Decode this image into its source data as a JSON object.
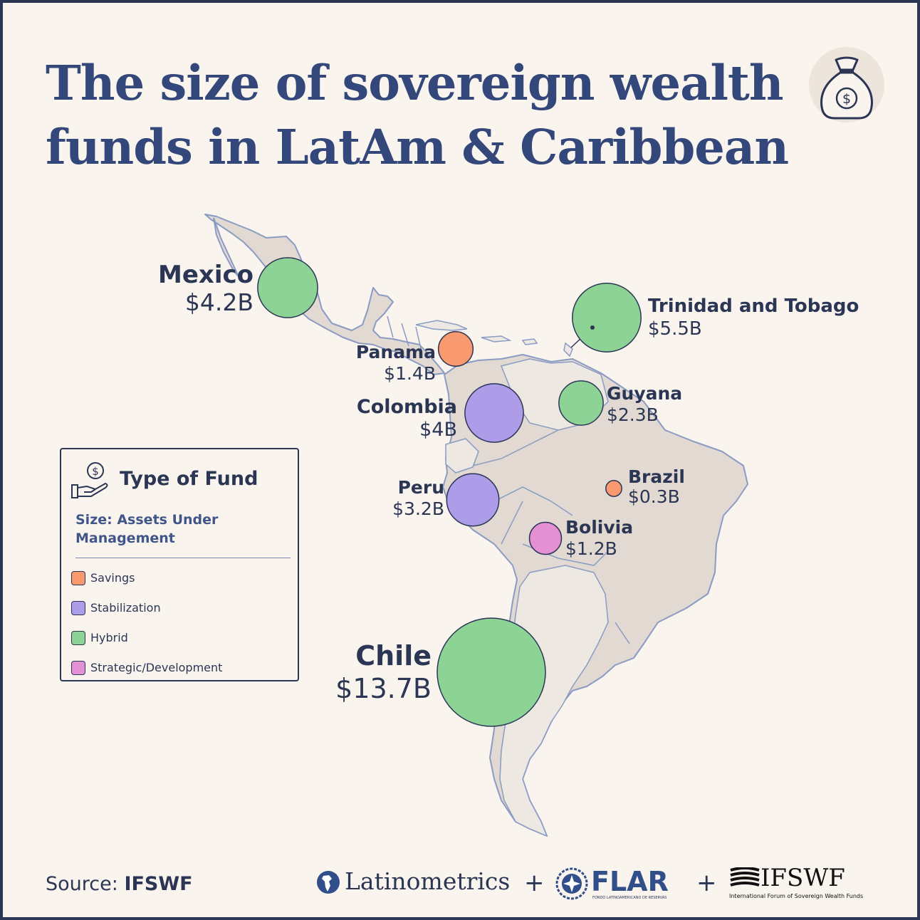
{
  "title": {
    "line1": "The size of sovereign wealth",
    "line2": "funds in LatAm & Caribbean"
  },
  "icons": {
    "header": "money-bag-icon",
    "legend": "hand-holding-coin-icon"
  },
  "colors": {
    "savings": "#f99970",
    "stabilization": "#ad9de8",
    "hybrid": "#8dd396",
    "strategic": "#e390d4",
    "land": "#e1d9d2",
    "land_light": "#ede8e2",
    "border": "#8a9bc4",
    "ink": "#2b3655",
    "title": "#34477a"
  },
  "legend": {
    "title": "Type of Fund",
    "subtitle": "Size: Assets Under Management",
    "items": [
      {
        "key": "savings",
        "label": "Savings"
      },
      {
        "key": "stabilization",
        "label": "Stabilization"
      },
      {
        "key": "hybrid",
        "label": "Hybrid"
      },
      {
        "key": "strategic",
        "label": "Strategic/Development"
      }
    ]
  },
  "funds": [
    {
      "country": "Mexico",
      "value": "$4.2B",
      "assets_bn": 4.2,
      "type": "hybrid"
    },
    {
      "country": "Trinidad and Tobago",
      "value": "$5.5B",
      "assets_bn": 5.5,
      "type": "hybrid"
    },
    {
      "country": "Panama",
      "value": "$1.4B",
      "assets_bn": 1.4,
      "type": "savings"
    },
    {
      "country": "Colombia",
      "value": "$4B",
      "assets_bn": 4.0,
      "type": "stabilization"
    },
    {
      "country": "Guyana",
      "value": "$2.3B",
      "assets_bn": 2.3,
      "type": "hybrid"
    },
    {
      "country": "Peru",
      "value": "$3.2B",
      "assets_bn": 3.2,
      "type": "stabilization"
    },
    {
      "country": "Brazil",
      "value": "$0.3B",
      "assets_bn": 0.3,
      "type": "savings"
    },
    {
      "country": "Bolivia",
      "value": "$1.2B",
      "assets_bn": 1.2,
      "type": "strategic"
    },
    {
      "country": "Chile",
      "value": "$13.7B",
      "assets_bn": 13.7,
      "type": "hybrid"
    }
  ],
  "source": {
    "prefix": "Source:",
    "name": "IFSWF"
  },
  "logos": {
    "latinometrics": "Latinometrics",
    "flar": "FLAR",
    "flar_sub": "FONDO LATINOAMERICANO DE RESERVAS",
    "ifswf": "IFSWF",
    "ifswf_sub": "International Forum of Sovereign Wealth Funds",
    "plus": "+"
  }
}
